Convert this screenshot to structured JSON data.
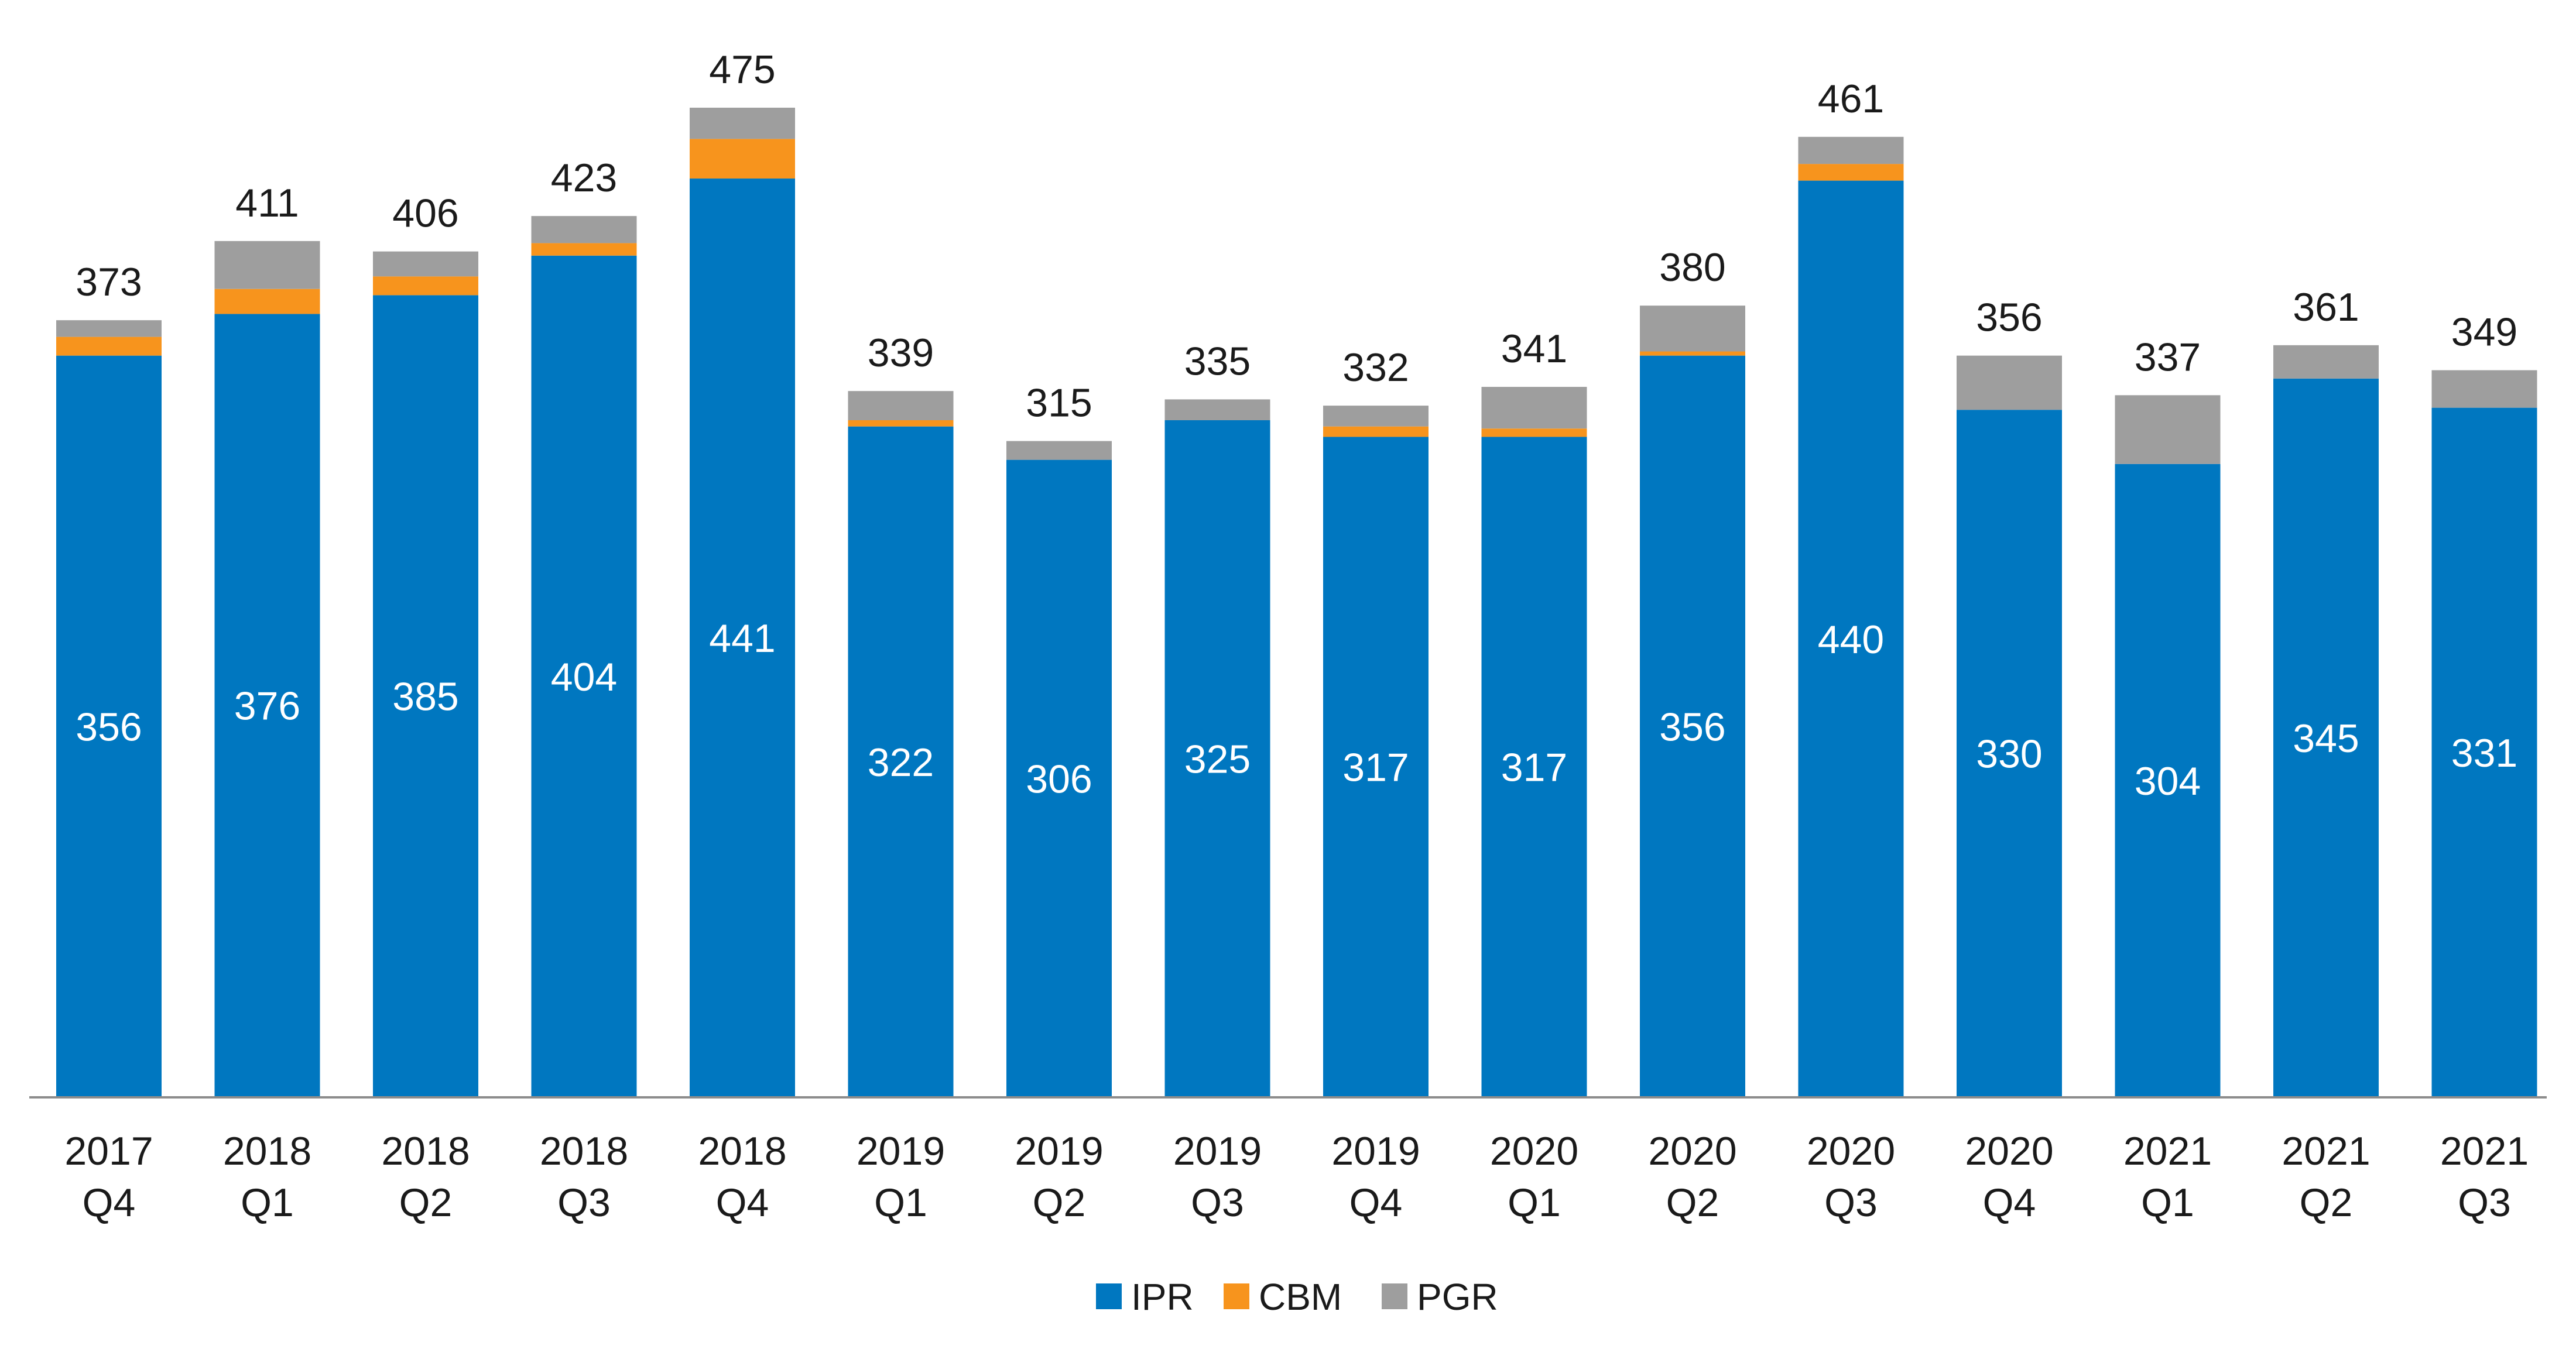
{
  "chart_data": {
    "type": "bar",
    "stacked": true,
    "title": "",
    "xlabel": "",
    "ylabel": "",
    "ylim": [
      0,
      475
    ],
    "grid": false,
    "legend_position": "bottom-center",
    "categories": [
      {
        "year": "2017",
        "quarter": "Q4"
      },
      {
        "year": "2018",
        "quarter": "Q1"
      },
      {
        "year": "2018",
        "quarter": "Q2"
      },
      {
        "year": "2018",
        "quarter": "Q3"
      },
      {
        "year": "2018",
        "quarter": "Q4"
      },
      {
        "year": "2019",
        "quarter": "Q1"
      },
      {
        "year": "2019",
        "quarter": "Q2"
      },
      {
        "year": "2019",
        "quarter": "Q3"
      },
      {
        "year": "2019",
        "quarter": "Q4"
      },
      {
        "year": "2020",
        "quarter": "Q1"
      },
      {
        "year": "2020",
        "quarter": "Q2"
      },
      {
        "year": "2020",
        "quarter": "Q3"
      },
      {
        "year": "2020",
        "quarter": "Q4"
      },
      {
        "year": "2021",
        "quarter": "Q1"
      },
      {
        "year": "2021",
        "quarter": "Q2"
      },
      {
        "year": "2021",
        "quarter": "Q3"
      }
    ],
    "series": [
      {
        "name": "IPR",
        "color": "#0077c0",
        "values": [
          356,
          376,
          385,
          404,
          441,
          322,
          306,
          325,
          317,
          317,
          356,
          440,
          330,
          304,
          345,
          331
        ]
      },
      {
        "name": "CBM",
        "color": "#f7941d",
        "values": [
          9,
          12,
          9,
          6,
          19,
          3,
          0,
          0,
          5,
          4,
          2,
          8,
          0,
          0,
          0,
          0
        ]
      },
      {
        "name": "PGR",
        "color": "#9e9e9e",
        "values": [
          8,
          23,
          12,
          13,
          15,
          14,
          9,
          10,
          10,
          20,
          22,
          13,
          26,
          33,
          16,
          18
        ]
      }
    ],
    "totals": [
      373,
      411,
      406,
      423,
      475,
      339,
      315,
      335,
      332,
      341,
      380,
      461,
      356,
      337,
      361,
      349
    ]
  }
}
